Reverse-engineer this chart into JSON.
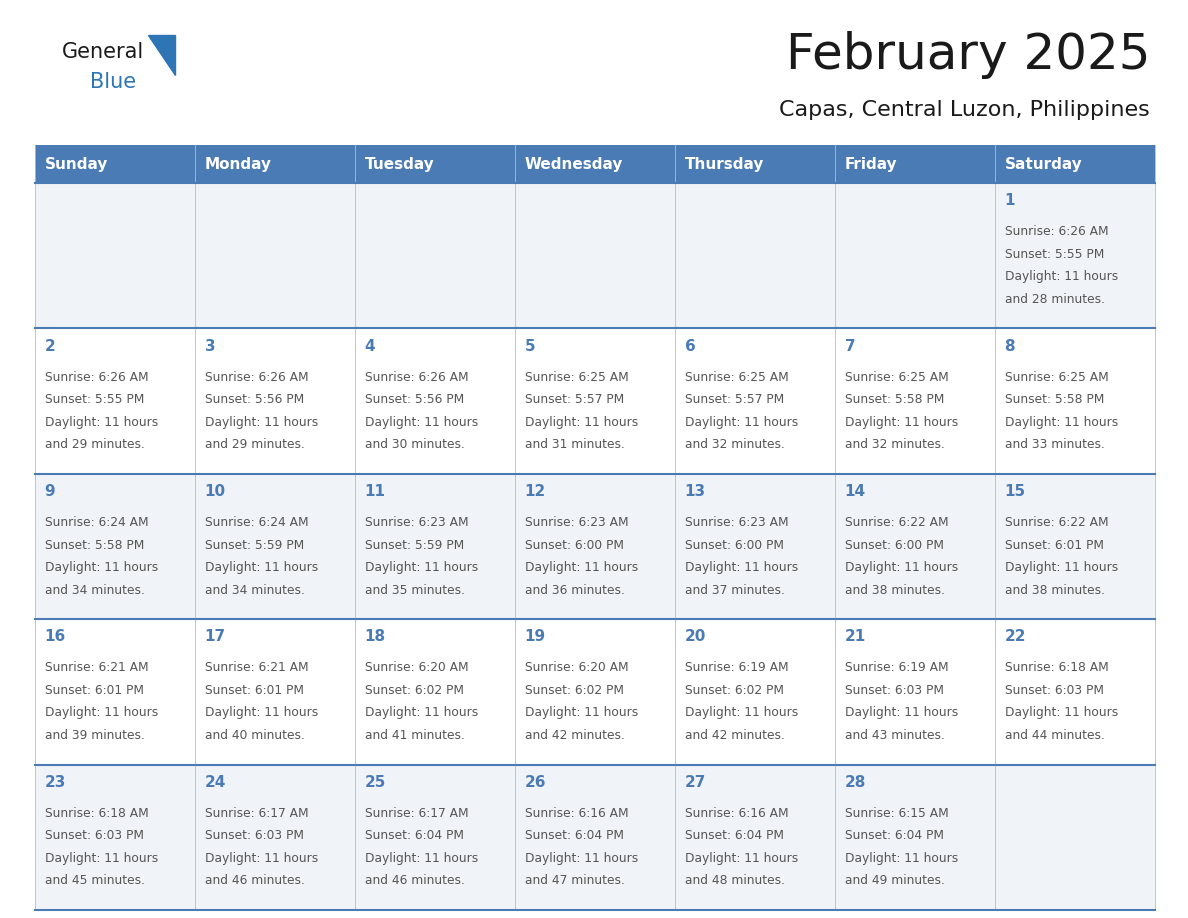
{
  "title": "February 2025",
  "subtitle": "Capas, Central Luzon, Philippines",
  "header_bg": "#4A7BB5",
  "header_text": "#FFFFFF",
  "day_headers": [
    "Sunday",
    "Monday",
    "Tuesday",
    "Wednesday",
    "Thursday",
    "Friday",
    "Saturday"
  ],
  "odd_row_bg": "#F0F4F8",
  "even_row_bg": "#FFFFFF",
  "line_color": "#4A7BB5",
  "num_color": "#4A7BB5",
  "text_color": "#555555",
  "title_color": "#1a1a1a",
  "logo_general_color": "#1a1a1a",
  "logo_blue_color": "#2E75B6",
  "calendar_data": [
    [
      null,
      null,
      null,
      null,
      null,
      null,
      {
        "day": 1,
        "sunrise": "6:26 AM",
        "sunset": "5:55 PM",
        "daylight": "11 hours",
        "daylight2": "and 28 minutes."
      }
    ],
    [
      {
        "day": 2,
        "sunrise": "6:26 AM",
        "sunset": "5:55 PM",
        "daylight": "11 hours",
        "daylight2": "and 29 minutes."
      },
      {
        "day": 3,
        "sunrise": "6:26 AM",
        "sunset": "5:56 PM",
        "daylight": "11 hours",
        "daylight2": "and 29 minutes."
      },
      {
        "day": 4,
        "sunrise": "6:26 AM",
        "sunset": "5:56 PM",
        "daylight": "11 hours",
        "daylight2": "and 30 minutes."
      },
      {
        "day": 5,
        "sunrise": "6:25 AM",
        "sunset": "5:57 PM",
        "daylight": "11 hours",
        "daylight2": "and 31 minutes."
      },
      {
        "day": 6,
        "sunrise": "6:25 AM",
        "sunset": "5:57 PM",
        "daylight": "11 hours",
        "daylight2": "and 32 minutes."
      },
      {
        "day": 7,
        "sunrise": "6:25 AM",
        "sunset": "5:58 PM",
        "daylight": "11 hours",
        "daylight2": "and 32 minutes."
      },
      {
        "day": 8,
        "sunrise": "6:25 AM",
        "sunset": "5:58 PM",
        "daylight": "11 hours",
        "daylight2": "and 33 minutes."
      }
    ],
    [
      {
        "day": 9,
        "sunrise": "6:24 AM",
        "sunset": "5:58 PM",
        "daylight": "11 hours",
        "daylight2": "and 34 minutes."
      },
      {
        "day": 10,
        "sunrise": "6:24 AM",
        "sunset": "5:59 PM",
        "daylight": "11 hours",
        "daylight2": "and 34 minutes."
      },
      {
        "day": 11,
        "sunrise": "6:23 AM",
        "sunset": "5:59 PM",
        "daylight": "11 hours",
        "daylight2": "and 35 minutes."
      },
      {
        "day": 12,
        "sunrise": "6:23 AM",
        "sunset": "6:00 PM",
        "daylight": "11 hours",
        "daylight2": "and 36 minutes."
      },
      {
        "day": 13,
        "sunrise": "6:23 AM",
        "sunset": "6:00 PM",
        "daylight": "11 hours",
        "daylight2": "and 37 minutes."
      },
      {
        "day": 14,
        "sunrise": "6:22 AM",
        "sunset": "6:00 PM",
        "daylight": "11 hours",
        "daylight2": "and 38 minutes."
      },
      {
        "day": 15,
        "sunrise": "6:22 AM",
        "sunset": "6:01 PM",
        "daylight": "11 hours",
        "daylight2": "and 38 minutes."
      }
    ],
    [
      {
        "day": 16,
        "sunrise": "6:21 AM",
        "sunset": "6:01 PM",
        "daylight": "11 hours",
        "daylight2": "and 39 minutes."
      },
      {
        "day": 17,
        "sunrise": "6:21 AM",
        "sunset": "6:01 PM",
        "daylight": "11 hours",
        "daylight2": "and 40 minutes."
      },
      {
        "day": 18,
        "sunrise": "6:20 AM",
        "sunset": "6:02 PM",
        "daylight": "11 hours",
        "daylight2": "and 41 minutes."
      },
      {
        "day": 19,
        "sunrise": "6:20 AM",
        "sunset": "6:02 PM",
        "daylight": "11 hours",
        "daylight2": "and 42 minutes."
      },
      {
        "day": 20,
        "sunrise": "6:19 AM",
        "sunset": "6:02 PM",
        "daylight": "11 hours",
        "daylight2": "and 42 minutes."
      },
      {
        "day": 21,
        "sunrise": "6:19 AM",
        "sunset": "6:03 PM",
        "daylight": "11 hours",
        "daylight2": "and 43 minutes."
      },
      {
        "day": 22,
        "sunrise": "6:18 AM",
        "sunset": "6:03 PM",
        "daylight": "11 hours",
        "daylight2": "and 44 minutes."
      }
    ],
    [
      {
        "day": 23,
        "sunrise": "6:18 AM",
        "sunset": "6:03 PM",
        "daylight": "11 hours",
        "daylight2": "and 45 minutes."
      },
      {
        "day": 24,
        "sunrise": "6:17 AM",
        "sunset": "6:03 PM",
        "daylight": "11 hours",
        "daylight2": "and 46 minutes."
      },
      {
        "day": 25,
        "sunrise": "6:17 AM",
        "sunset": "6:04 PM",
        "daylight": "11 hours",
        "daylight2": "and 46 minutes."
      },
      {
        "day": 26,
        "sunrise": "6:16 AM",
        "sunset": "6:04 PM",
        "daylight": "11 hours",
        "daylight2": "and 47 minutes."
      },
      {
        "day": 27,
        "sunrise": "6:16 AM",
        "sunset": "6:04 PM",
        "daylight": "11 hours",
        "daylight2": "and 48 minutes."
      },
      {
        "day": 28,
        "sunrise": "6:15 AM",
        "sunset": "6:04 PM",
        "daylight": "11 hours",
        "daylight2": "and 49 minutes."
      },
      null
    ]
  ]
}
